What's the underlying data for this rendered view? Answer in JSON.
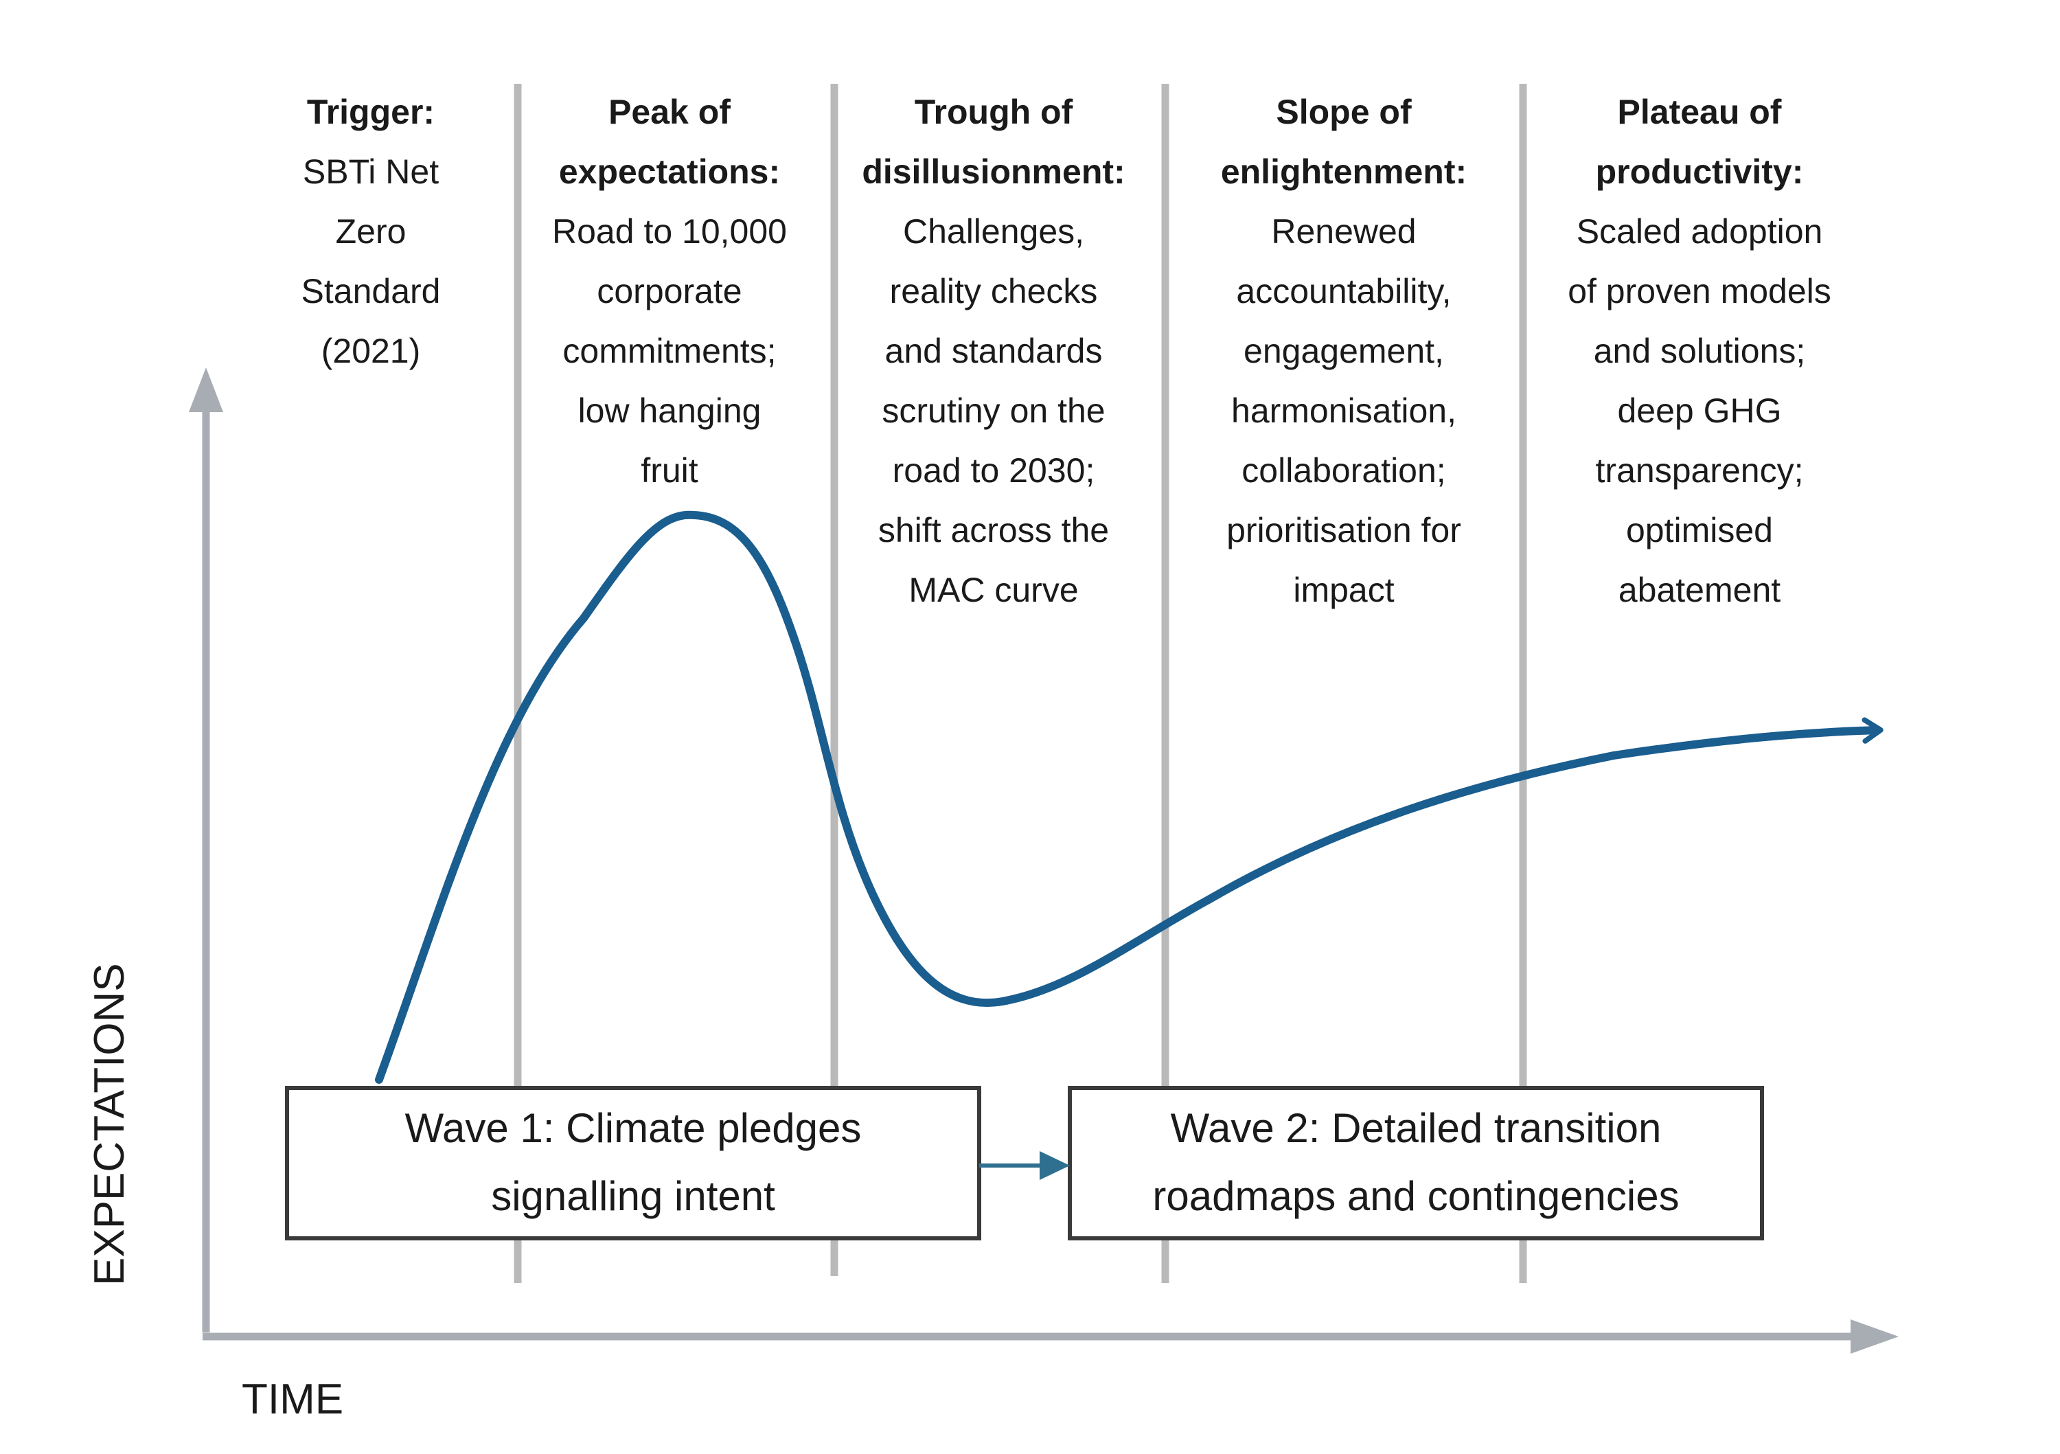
{
  "colors": {
    "curve": "#1a5d8f",
    "axis": "#a7adb3",
    "divider": "#b9b9b9",
    "box_border": "#3a3a3a",
    "connector": "#2f6f8f",
    "text": "#1a1a1a"
  },
  "axes": {
    "y_label": "EXPECTATIONS",
    "x_label": "TIME"
  },
  "phases": [
    {
      "heading": [
        "Trigger:"
      ],
      "body": [
        "SBTi Net",
        "Zero",
        "Standard",
        "(2021)"
      ]
    },
    {
      "heading": [
        "Peak of",
        "expectations:"
      ],
      "body": [
        "Road to 10,000",
        "corporate",
        "commitments;",
        "low hanging",
        "fruit"
      ]
    },
    {
      "heading": [
        "Trough of",
        "disillusionment:"
      ],
      "body": [
        "Challenges,",
        "reality checks",
        "and standards",
        "scrutiny on the",
        "road to 2030;",
        "shift across the",
        "MAC curve"
      ]
    },
    {
      "heading": [
        "Slope of",
        "enlightenment:"
      ],
      "body": [
        "Renewed",
        "accountability,",
        "engagement,",
        "harmonisation,",
        "collaboration;",
        "prioritisation for",
        "impact"
      ]
    },
    {
      "heading": [
        "Plateau of",
        "productivity:"
      ],
      "body": [
        "Scaled adoption",
        "of proven models",
        "and solutions;",
        "deep GHG",
        "transparency;",
        "optimised",
        "abatement"
      ]
    }
  ],
  "waves": [
    {
      "lines": [
        "Wave 1: Climate pledges",
        "signalling intent"
      ]
    },
    {
      "lines": [
        "Wave 2: Detailed transition",
        "roadmaps and contingencies"
      ]
    }
  ]
}
